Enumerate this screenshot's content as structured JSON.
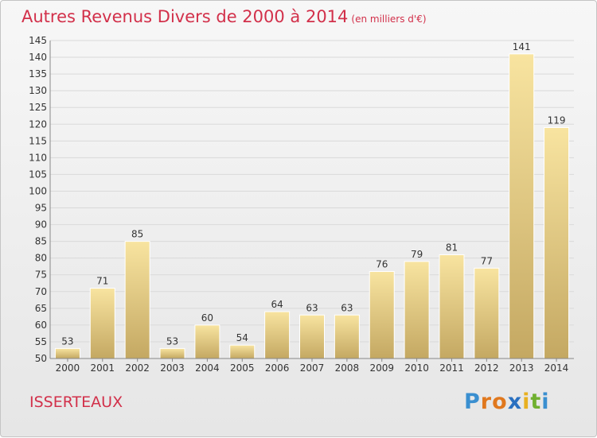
{
  "title": "Autres Revenus Divers de 2000 à 2014",
  "subtitle": "(en milliers d'€)",
  "city": "ISSERTEAUX",
  "logo": {
    "letters": [
      "P",
      "r",
      "o",
      "x",
      "i",
      "t",
      "i"
    ],
    "colors": [
      "#3a8fd0",
      "#e0781e",
      "#e0781e",
      "#2a70c0",
      "#e8b020",
      "#70b030",
      "#3a8fd0"
    ]
  },
  "colors": {
    "title": "#d2304a",
    "bar_light": "#f8e4a0",
    "bar_dark": "#c4a862",
    "grid": "#d9d9d9",
    "axis": "#888888",
    "text": "#333333"
  },
  "chart_data": {
    "type": "bar",
    "title": "Autres Revenus Divers de 2000 à 2014",
    "subtitle": "(en milliers d'€)",
    "categories": [
      "2000",
      "2001",
      "2002",
      "2003",
      "2004",
      "2005",
      "2006",
      "2007",
      "2008",
      "2009",
      "2010",
      "2011",
      "2012",
      "2013",
      "2014"
    ],
    "values": [
      53,
      71,
      85,
      53,
      60,
      54,
      64,
      63,
      63,
      76,
      79,
      81,
      77,
      141,
      119
    ],
    "ylim": [
      50,
      145
    ],
    "yticks": [
      50,
      55,
      60,
      65,
      70,
      75,
      80,
      85,
      90,
      95,
      100,
      105,
      110,
      115,
      120,
      125,
      130,
      135,
      140,
      145
    ],
    "grid": true,
    "data_labels": true,
    "legend": "none"
  }
}
